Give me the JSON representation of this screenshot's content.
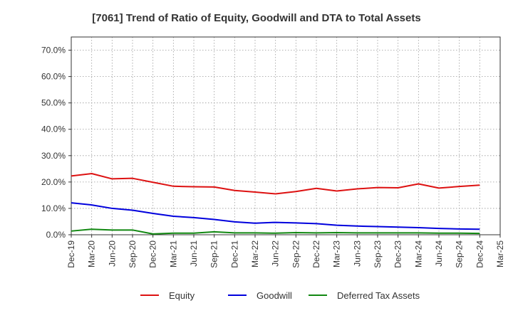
{
  "chart_data": {
    "type": "line",
    "title": "[7061]  Trend of Ratio of Equity, Goodwill and DTA to Total Assets",
    "xlabel": "",
    "ylabel": "",
    "ylim": [
      0,
      75
    ],
    "y_ticks": [
      0,
      10,
      20,
      30,
      40,
      50,
      60,
      70
    ],
    "y_tick_labels": [
      "0.0%",
      "10.0%",
      "20.0%",
      "30.0%",
      "40.0%",
      "50.0%",
      "60.0%",
      "70.0%"
    ],
    "categories": [
      "Dec-19",
      "Mar-20",
      "Jun-20",
      "Sep-20",
      "Dec-20",
      "Mar-21",
      "Jun-21",
      "Sep-21",
      "Dec-21",
      "Mar-22",
      "Jun-22",
      "Sep-22",
      "Dec-22",
      "Mar-23",
      "Jun-23",
      "Sep-23",
      "Dec-23",
      "Mar-24",
      "Jun-24",
      "Sep-24",
      "Dec-24",
      "Mar-25"
    ],
    "grid": true,
    "legend_position": "bottom",
    "series": [
      {
        "name": "Equity",
        "color": "#dd1111",
        "values": [
          22.3,
          23.2,
          21.2,
          21.4,
          19.9,
          18.4,
          18.2,
          18.1,
          16.8,
          16.2,
          15.5,
          16.4,
          17.6,
          16.6,
          17.4,
          17.9,
          17.8,
          19.3,
          17.7,
          18.3,
          18.8,
          null
        ]
      },
      {
        "name": "Goodwill",
        "color": "#0000dd",
        "values": [
          12.1,
          11.3,
          10.0,
          9.3,
          8.1,
          7.0,
          6.5,
          5.8,
          4.9,
          4.4,
          4.7,
          4.5,
          4.2,
          3.6,
          3.3,
          3.1,
          2.9,
          2.7,
          2.4,
          2.2,
          2.1,
          null
        ]
      },
      {
        "name": "Deferred Tax Assets",
        "color": "#118811",
        "values": [
          1.4,
          2.1,
          1.8,
          1.8,
          0.3,
          0.6,
          0.6,
          1.1,
          0.7,
          0.7,
          0.6,
          0.8,
          0.7,
          0.8,
          0.7,
          0.7,
          0.7,
          0.7,
          0.6,
          0.6,
          0.5,
          null
        ]
      }
    ]
  }
}
